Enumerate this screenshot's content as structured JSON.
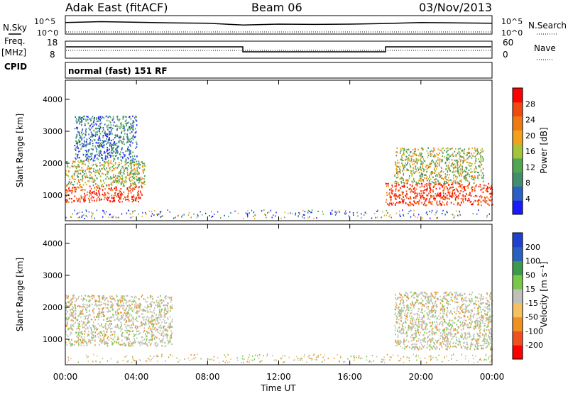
{
  "header": {
    "station": "Adak East (fitACF)",
    "beam": "Beam 06",
    "date": "03/Nov/2013"
  },
  "panels": {
    "nsky_label": "N.Sky",
    "nsky_ticks": [
      "10^5",
      "10^0"
    ],
    "nsearch_label": "N.Search",
    "freq_label": "Freq.",
    "freq_unit": "[MHz]",
    "freq_ticks": [
      "18",
      "8"
    ],
    "nave_ticks": [
      "60",
      "0"
    ],
    "nave_label": "Nave",
    "cpid_label": "CPID",
    "cpid_text": "normal (fast) 151 RF"
  },
  "colors": {
    "power_scale": [
      "#1a1aff",
      "#2a5fc8",
      "#3f8f6e",
      "#4fa84f",
      "#a6c43a",
      "#f2a21a",
      "#f07a10",
      "#f04a10",
      "#ff0000"
    ],
    "velocity_scale": [
      "#2040d0",
      "#2a60c0",
      "#3a9a4a",
      "#78c84a",
      "#c0c0b8",
      "#f4c060",
      "#f09020",
      "#f05020",
      "#ff0000"
    ],
    "ground_scatter": "#c0c0b8"
  },
  "chart_data": [
    {
      "type": "line",
      "name": "N.Sky",
      "x": [
        "00:00",
        "02:00",
        "04:00",
        "06:00",
        "08:00",
        "10:00",
        "12:00",
        "14:00",
        "16:00",
        "18:00",
        "20:00",
        "22:00",
        "24:00"
      ],
      "values": [
        3.0,
        3.3,
        3.1,
        2.9,
        2.8,
        2.2,
        2.5,
        2.4,
        2.5,
        2.7,
        3.0,
        2.9,
        2.8
      ],
      "ylim": [
        0,
        5
      ],
      "ylabel": "N.Sky",
      "y2label": "N.Search"
    },
    {
      "type": "line",
      "name": "Freq.",
      "ylabel": "Freq. [MHz]",
      "ylim": [
        8,
        18
      ],
      "x": [
        "00:00",
        "10:00",
        "10:00",
        "18:00",
        "18:00",
        "24:00"
      ],
      "values": [
        12,
        12,
        11,
        11,
        12,
        12
      ],
      "y2label": "Nave",
      "y2lim": [
        0,
        60
      ]
    },
    {
      "type": "heatmap",
      "name": "Power",
      "ylabel": "Slant Range [km]",
      "ylim": [
        200,
        4600
      ],
      "yticks": [
        "1000",
        "2000",
        "3000",
        "4000"
      ],
      "xticks": [
        "00:00",
        "04:00",
        "08:00",
        "12:00",
        "16:00",
        "20:00",
        "00:00"
      ],
      "colorbar_label": "Power [dB]",
      "colorbar_ticks": [
        "4",
        "8",
        "12",
        "16",
        "20",
        "24",
        "28"
      ],
      "regions": [
        {
          "t0": 0.0,
          "t1": 4.3,
          "r0": 800,
          "r1": 1300,
          "level": "high"
        },
        {
          "t0": 0.0,
          "t1": 4.5,
          "r0": 1300,
          "r1": 2100,
          "level": "mid"
        },
        {
          "t0": 0.5,
          "t1": 4.0,
          "r0": 2100,
          "r1": 3500,
          "level": "low"
        },
        {
          "t0": 18.0,
          "t1": 24.0,
          "r0": 700,
          "r1": 1400,
          "level": "high"
        },
        {
          "t0": 18.5,
          "t1": 23.5,
          "r0": 1400,
          "r1": 2500,
          "level": "mid"
        }
      ]
    },
    {
      "type": "heatmap",
      "name": "Velocity",
      "ylabel": "Slant Range [km]",
      "ylim": [
        200,
        4600
      ],
      "yticks": [
        "1000",
        "2000",
        "3000",
        "4000"
      ],
      "xticks": [
        "00:00",
        "04:00",
        "08:00",
        "12:00",
        "16:00",
        "20:00",
        "00:00"
      ],
      "xlabel": "Time UT",
      "colorbar_label": "Velocity [m s⁻¹]",
      "colorbar_ticks": [
        "200",
        "100",
        "50",
        "15",
        "-15",
        "-50",
        "-100",
        "-200"
      ],
      "regions": [
        {
          "t0": 0.0,
          "t1": 6.0,
          "r0": 800,
          "r1": 2400,
          "level": "ground"
        },
        {
          "t0": 18.5,
          "t1": 24.0,
          "r0": 700,
          "r1": 2500,
          "level": "ground"
        }
      ]
    }
  ]
}
